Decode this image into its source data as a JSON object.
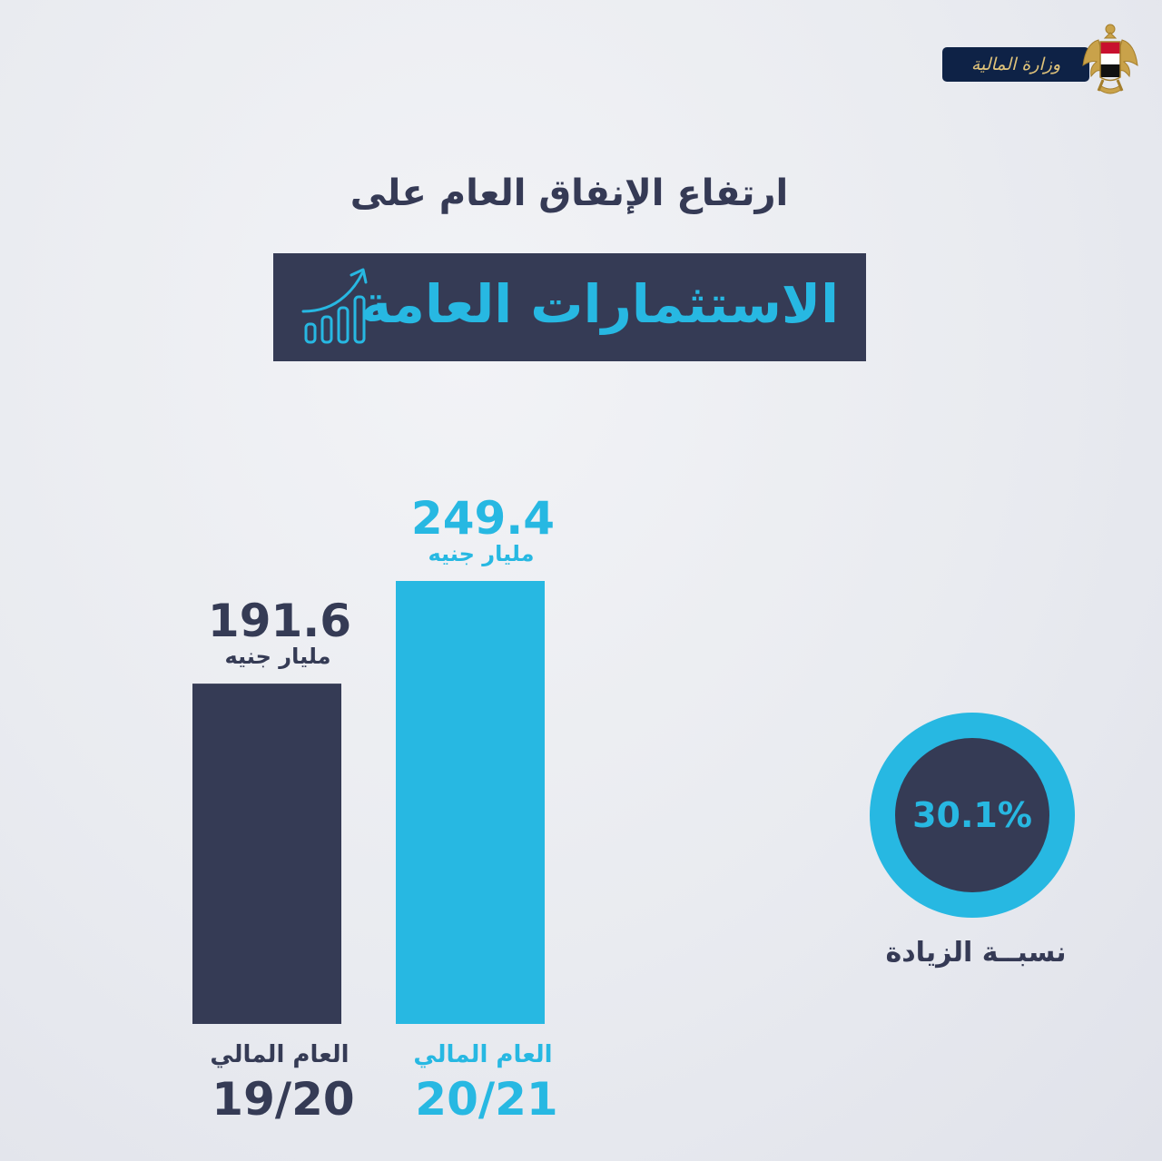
{
  "header": {
    "logo_text": "وزارة المالية"
  },
  "title": {
    "line1": "ارتفاع الإنفاق العام على",
    "line2": "الاستثمارات العامة"
  },
  "colors": {
    "navy": "#353b55",
    "cyan": "#27b8e2",
    "background": "#e6e8ee"
  },
  "chart_data": {
    "type": "bar",
    "categories": [
      "19/20",
      "20/21"
    ],
    "category_prefix": "العام المالي",
    "values": [
      191.6,
      249.4
    ],
    "value_labels": [
      "191.6",
      "249.4"
    ],
    "unit": "مليار جنيه",
    "bar_colors": [
      "#353b55",
      "#27b8e2"
    ],
    "ylim": [
      0,
      249.4
    ],
    "title": "ارتفاع الإنفاق العام على الاستثمارات العامة",
    "xlabel": "",
    "ylabel": ""
  },
  "increase": {
    "value": "30.1%",
    "label": "نسبــة الزيادة"
  }
}
